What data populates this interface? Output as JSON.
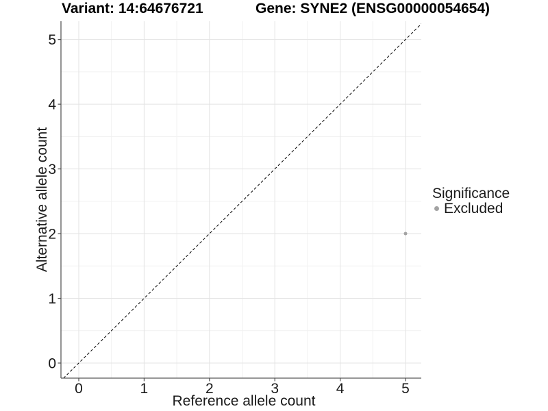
{
  "header": {
    "variant_title": "Variant: 14:64676721",
    "gene_title": "Gene: SYNE2 (ENSG00000054654)"
  },
  "chart_data": {
    "type": "scatter",
    "title_left": "Variant: 14:64676721",
    "title_right": "Gene: SYNE2 (ENSG00000054654)",
    "xlabel": "Reference allele count",
    "ylabel": "Alternative allele count",
    "xlim": [
      -0.27,
      5.24
    ],
    "ylim": [
      -0.24,
      5.28
    ],
    "x_ticks": [
      0,
      1,
      2,
      3,
      4,
      5
    ],
    "y_ticks": [
      0,
      1,
      2,
      3,
      4,
      5
    ],
    "grid": {
      "major": true,
      "minor": true
    },
    "points": [
      {
        "x": 5,
        "y": 2,
        "series": "Excluded"
      }
    ],
    "identity_line": {
      "slope": 1,
      "intercept": 0,
      "style": "dashed"
    },
    "legend": {
      "title": "Significance",
      "position": "right",
      "entries": [
        {
          "label": "Excluded",
          "color": "#a3a3a3"
        }
      ]
    },
    "colors": {
      "background": "#ffffff",
      "point": "#a3a3a3",
      "grid_major": "#e3e3e3",
      "grid_minor": "#f1f1f1",
      "axis_line": "#595959",
      "tick_mark": "#4f4f4f",
      "identity_line": "#000000",
      "text": "#1a1a1a"
    }
  }
}
